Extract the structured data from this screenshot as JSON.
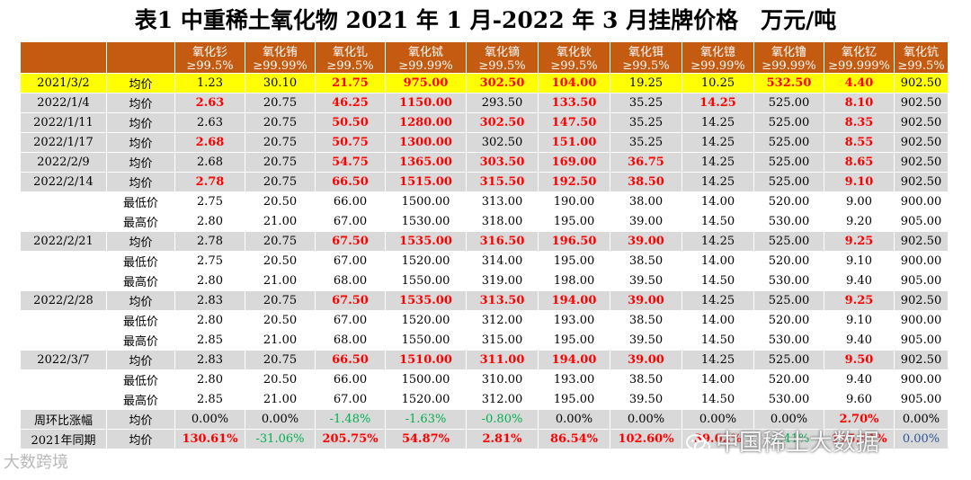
{
  "title": "表1 中重稀土氧化物 2021 年 1 月-2022 年 3 月挂牌价格　万元/吨",
  "header": {
    "blank1": "",
    "blank2": "",
    "columns": [
      [
        "氧化钐",
        "≥99.5%"
      ],
      [
        "氧化铕",
        "≥99.99%"
      ],
      [
        "氧化钆",
        "≥99.5%"
      ],
      [
        "氧化铽",
        "≥99.99%"
      ],
      [
        "氧化镝",
        "≥99.5%"
      ],
      [
        "氧化钬",
        "≥99.5%"
      ],
      [
        "氧化铒",
        "≥99.5%"
      ],
      [
        "氧化镱",
        "≥99.99%"
      ],
      [
        "氧化镥",
        "≥99.99%"
      ],
      [
        "氧化钇",
        "≥99.999%"
      ],
      [
        "氧化钪",
        "≥99.5%"
      ]
    ]
  },
  "rows": [
    {
      "date": "2021/3/2",
      "type": "均价",
      "values": [
        "1.23",
        "30.10",
        "21.75",
        "975.00",
        "302.50",
        "104.00",
        "19.25",
        "10.25",
        "532.50",
        "4.40",
        "902.50"
      ]
    },
    {
      "date": "2022/1/4",
      "type": "均价",
      "values": [
        "2.63",
        "20.75",
        "46.25",
        "1150.00",
        "293.50",
        "133.50",
        "35.25",
        "14.25",
        "525.00",
        "8.10",
        "902.50"
      ]
    },
    {
      "date": "2022/1/11",
      "type": "均价",
      "values": [
        "2.63",
        "20.75",
        "50.50",
        "1280.00",
        "302.50",
        "147.50",
        "35.25",
        "14.25",
        "525.00",
        "8.35",
        "902.50"
      ]
    },
    {
      "date": "2022/1/17",
      "type": "均价",
      "values": [
        "2.68",
        "20.75",
        "50.75",
        "1300.00",
        "302.50",
        "151.00",
        "35.25",
        "14.25",
        "525.00",
        "8.55",
        "902.50"
      ]
    },
    {
      "date": "2022/2/9",
      "type": "均价",
      "values": [
        "2.68",
        "20.75",
        "54.75",
        "1365.00",
        "303.50",
        "169.00",
        "36.75",
        "14.25",
        "525.00",
        "8.65",
        "902.50"
      ]
    },
    {
      "date": "2022/2/14",
      "type": "均价",
      "values": [
        "2.78",
        "20.75",
        "66.50",
        "1515.00",
        "315.50",
        "192.50",
        "38.50",
        "14.25",
        "525.00",
        "9.10",
        "902.50"
      ]
    },
    {
      "date": "",
      "type": "最低价",
      "values": [
        "2.75",
        "20.50",
        "66.00",
        "1500.00",
        "313.00",
        "190.00",
        "38.00",
        "14.00",
        "520.00",
        "9.00",
        "900.00"
      ]
    },
    {
      "date": "",
      "type": "最高价",
      "values": [
        "2.80",
        "21.00",
        "67.00",
        "1530.00",
        "318.00",
        "195.00",
        "39.00",
        "14.50",
        "530.00",
        "9.20",
        "905.00"
      ]
    },
    {
      "date": "2022/2/21",
      "type": "均价",
      "values": [
        "2.78",
        "20.75",
        "67.50",
        "1535.00",
        "316.50",
        "196.50",
        "39.00",
        "14.25",
        "525.00",
        "9.25",
        "902.50"
      ]
    },
    {
      "date": "",
      "type": "最低价",
      "values": [
        "2.75",
        "20.50",
        "67.00",
        "1520.00",
        "314.00",
        "195.00",
        "38.50",
        "14.00",
        "520.00",
        "9.10",
        "900.00"
      ]
    },
    {
      "date": "",
      "type": "最高价",
      "values": [
        "2.80",
        "21.00",
        "68.00",
        "1550.00",
        "319.00",
        "198.00",
        "39.50",
        "14.50",
        "530.00",
        "9.40",
        "905.00"
      ]
    },
    {
      "date": "2022/2/28",
      "type": "均价",
      "values": [
        "2.83",
        "20.75",
        "67.50",
        "1535.00",
        "313.50",
        "194.00",
        "39.00",
        "14.25",
        "525.00",
        "9.25",
        "902.50"
      ]
    },
    {
      "date": "",
      "type": "最低价",
      "values": [
        "2.80",
        "20.50",
        "67.00",
        "1520.00",
        "312.00",
        "193.00",
        "38.50",
        "14.00",
        "520.00",
        "9.10",
        "900.00"
      ]
    },
    {
      "date": "",
      "type": "最高价",
      "values": [
        "2.85",
        "21.00",
        "68.00",
        "1550.00",
        "315.00",
        "195.00",
        "39.50",
        "14.50",
        "530.00",
        "9.40",
        "905.00"
      ]
    },
    {
      "date": "2022/3/7",
      "type": "均价",
      "values": [
        "2.83",
        "20.75",
        "66.50",
        "1510.00",
        "311.00",
        "194.00",
        "39.00",
        "14.25",
        "525.00",
        "9.50",
        "902.50"
      ]
    },
    {
      "date": "",
      "type": "最低价",
      "values": [
        "2.80",
        "20.50",
        "66.00",
        "1500.00",
        "310.00",
        "193.00",
        "38.50",
        "14.00",
        "520.00",
        "9.40",
        "900.00"
      ]
    },
    {
      "date": "",
      "type": "最高价",
      "values": [
        "2.85",
        "21.00",
        "67.00",
        "1520.00",
        "312.00",
        "195.00",
        "39.50",
        "14.50",
        "530.00",
        "9.60",
        "905.00"
      ]
    },
    {
      "date": "周环比涨幅",
      "type": "均价",
      "values": [
        "0.00%",
        "0.00%",
        "-1.48%",
        "-1.63%",
        "-0.80%",
        "0.00%",
        "0.00%",
        "0.00%",
        "0.00%",
        "2.70%",
        "0.00%"
      ]
    },
    {
      "date": "2021年同期",
      "type": "均价",
      "values": [
        "130.61%",
        "-31.06%",
        "205.75%",
        "54.87%",
        "2.81%",
        "86.54%",
        "102.60%",
        "39.02%",
        "-1.41%",
        "115.91%",
        "0.00%"
      ]
    }
  ],
  "watermarks": {
    "left": "大数跨境",
    "right": "中国稀土大数据"
  },
  "colors": {
    "header_bg": "#c55a11",
    "highlight_row": "#ffff00",
    "grey_row": "#d9d9d9",
    "increase": "#ff0000",
    "decrease": "#00b050",
    "neutral_blue": "#2f5597"
  }
}
